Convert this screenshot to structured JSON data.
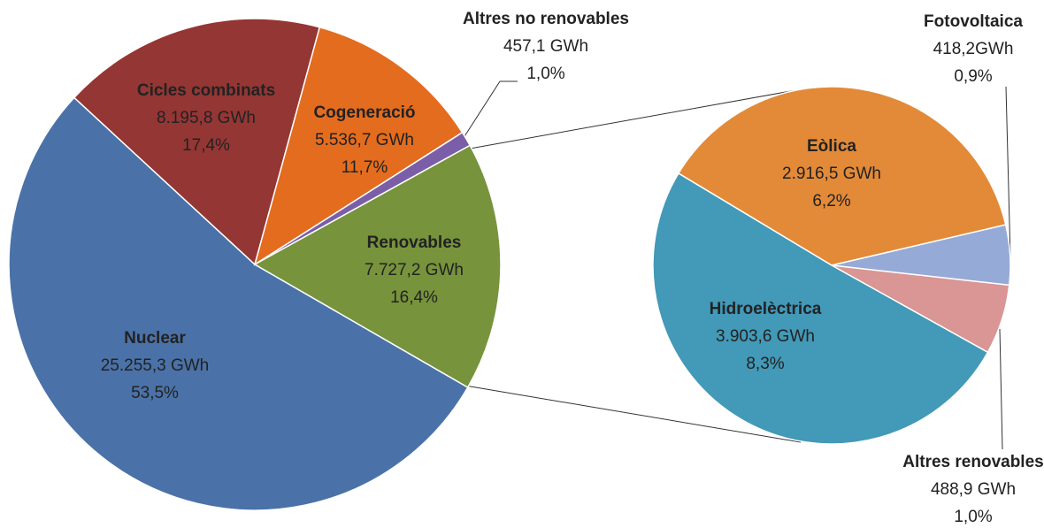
{
  "chart_data": [
    {
      "type": "pie",
      "categories": [
        "Nuclear",
        "Cicles combinats",
        "Cogeneració",
        "Altres no renovables",
        "Renovables"
      ],
      "values": [
        25255.3,
        8195.8,
        5536.7,
        457.1,
        7727.2
      ],
      "value_labels": [
        "25.255,3 GWh",
        "8.195,8 GWh",
        "5.536,7 GWh",
        "457,1 GWh",
        "7.727,2 GWh"
      ],
      "percent_labels": [
        "53,5%",
        "17,4%",
        "11,7%",
        "1,0%",
        "16,4%"
      ],
      "colors": [
        "#4a72a8",
        "#943634",
        "#e46c1e",
        "#7a5ea8",
        "#77933c"
      ]
    },
    {
      "type": "pie",
      "categories": [
        "Eòlica",
        "Fotovoltaica",
        "Altres renovables",
        "Hidroelèctrica"
      ],
      "values": [
        2916.5,
        418.2,
        488.9,
        3903.6
      ],
      "value_labels": [
        "2.916,5 GWh",
        "418,2GWh",
        "488,9 GWh",
        "3.903,6 GWh"
      ],
      "percent_labels": [
        "6,2%",
        "0,9%",
        "1,0%",
        "8,3%"
      ],
      "colors": [
        "#e38a38",
        "#95aad6",
        "#d99694",
        "#4299b8"
      ]
    }
  ]
}
